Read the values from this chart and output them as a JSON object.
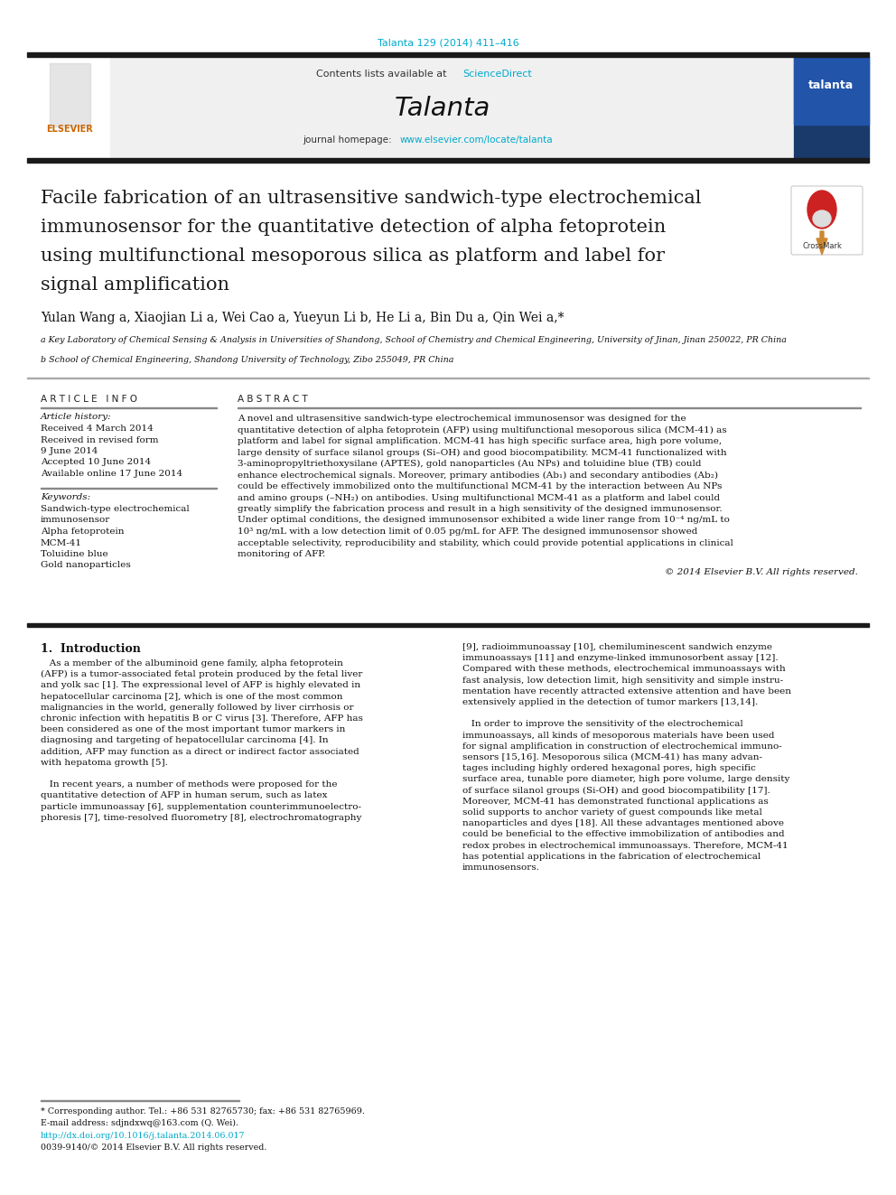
{
  "journal_ref": "Talanta 129 (2014) 411–416",
  "journal_ref_color": "#00aacc",
  "contents_line": "Contents lists available at ",
  "sciencedirect_text": "ScienceDirect",
  "sciencedirect_color": "#00aacc",
  "journal_name": "Talanta",
  "journal_homepage_prefix": "journal homepage: ",
  "journal_homepage_url": "www.elsevier.com/locate/talanta",
  "journal_homepage_url_color": "#00aacc",
  "title_line1": "Facile fabrication of an ultrasensitive sandwich-type electrochemical",
  "title_line2": "immunosensor for the quantitative detection of alpha fetoprotein",
  "title_line3": "using multifunctional mesoporous silica as platform and label for",
  "title_line4": "signal amplification",
  "authors": "Yulan Wang a, Xiaojian Li a, Wei Cao a, Yueyun Li b, He Li a, Bin Du a, Qin Wei a,*",
  "affil_a": "a Key Laboratory of Chemical Sensing & Analysis in Universities of Shandong, School of Chemistry and Chemical Engineering, University of Jinan, Jinan 250022, PR China",
  "affil_b": "b School of Chemical Engineering, Shandong University of Technology, Zibo 255049, PR China",
  "article_info_title": "A R T I C L E   I N F O",
  "article_history_label": "Article history:",
  "history_lines": [
    "Received 4 March 2014",
    "Received in revised form",
    "9 June 2014",
    "Accepted 10 June 2014",
    "Available online 17 June 2014"
  ],
  "keywords_label": "Keywords:",
  "keyword_lines": [
    "Sandwich-type electrochemical",
    "immunosensor",
    "Alpha fetoprotein",
    "MCM-41",
    "Toluidine blue",
    "Gold nanoparticles"
  ],
  "abstract_title": "A B S T R A C T",
  "abstract_lines": [
    "A novel and ultrasensitive sandwich-type electrochemical immunosensor was designed for the",
    "quantitative detection of alpha fetoprotein (AFP) using multifunctional mesoporous silica (MCM-41) as",
    "platform and label for signal amplification. MCM-41 has high specific surface area, high pore volume,",
    "large density of surface silanol groups (Si–OH) and good biocompatibility. MCM-41 functionalized with",
    "3-aminopropyltriethoxysilane (APTES), gold nanoparticles (Au NPs) and toluidine blue (TB) could",
    "enhance electrochemical signals. Moreover, primary antibodies (Ab₁) and secondary antibodies (Ab₂)",
    "could be effectively immobilized onto the multifunctional MCM-41 by the interaction between Au NPs",
    "and amino groups (–NH₂) on antibodies. Using multifunctional MCM-41 as a platform and label could",
    "greatly simplify the fabrication process and result in a high sensitivity of the designed immunosensor.",
    "Under optimal conditions, the designed immunosensor exhibited a wide liner range from 10⁻⁴ ng/mL to",
    "10³ ng/mL with a low detection limit of 0.05 pg/mL for AFP. The designed immunosensor showed",
    "acceptable selectivity, reproducibility and stability, which could provide potential applications in clinical",
    "monitoring of AFP."
  ],
  "copyright_text": "© 2014 Elsevier B.V. All rights reserved.",
  "intro_heading": "1.  Introduction",
  "intro_col1_lines": [
    "   As a member of the albuminoid gene family, alpha fetoprotein",
    "(AFP) is a tumor-associated fetal protein produced by the fetal liver",
    "and yolk sac [1]. The expressional level of AFP is highly elevated in",
    "hepatocellular carcinoma [2], which is one of the most common",
    "malignancies in the world, generally followed by liver cirrhosis or",
    "chronic infection with hepatitis B or C virus [3]. Therefore, AFP has",
    "been considered as one of the most important tumor markers in",
    "diagnosing and targeting of hepatocellular carcinoma [4]. In",
    "addition, AFP may function as a direct or indirect factor associated",
    "with hepatoma growth [5].",
    "",
    "   In recent years, a number of methods were proposed for the",
    "quantitative detection of AFP in human serum, such as latex",
    "particle immunoassay [6], supplementation counterimmunoelectro-",
    "phoresis [7], time-resolved fluorometry [8], electrochromatography"
  ],
  "intro_col2_lines": [
    "[9], radioimmunoassay [10], chemiluminescent sandwich enzyme",
    "immunoassays [11] and enzyme-linked immunosorbent assay [12].",
    "Compared with these methods, electrochemical immunoassays with",
    "fast analysis, low detection limit, high sensitivity and simple instru-",
    "mentation have recently attracted extensive attention and have been",
    "extensively applied in the detection of tumor markers [13,14].",
    "",
    "   In order to improve the sensitivity of the electrochemical",
    "immunoassays, all kinds of mesoporous materials have been used",
    "for signal amplification in construction of electrochemical immuno-",
    "sensors [15,16]. Mesoporous silica (MCM-41) has many advan-",
    "tages including highly ordered hexagonal pores, high specific",
    "surface area, tunable pore diameter, high pore volume, large density",
    "of surface silanol groups (Si-OH) and good biocompatibility [17].",
    "Moreover, MCM-41 has demonstrated functional applications as",
    "solid supports to anchor variety of guest compounds like metal",
    "nanoparticles and dyes [18]. All these advantages mentioned above",
    "could be beneficial to the effective immobilization of antibodies and",
    "redox probes in electrochemical immunoassays. Therefore, MCM-41",
    "has potential applications in the fabrication of electrochemical",
    "immunosensors."
  ],
  "footnote_star": "* Corresponding author. Tel.: +86 531 82765730; fax: +86 531 82765969.",
  "footnote_email": "E-mail address: sdjndxwq@163.com (Q. Wei).",
  "footnote_doi": "http://dx.doi.org/10.1016/j.talanta.2014.06.017",
  "footnote_doi_color": "#00aacc",
  "footnote_issn": "0039-9140/© 2014 Elsevier B.V. All rights reserved.",
  "header_bg_color": "#f0f0f0",
  "thick_bar_color": "#1a1a1a",
  "title_color": "#1a1a1a"
}
